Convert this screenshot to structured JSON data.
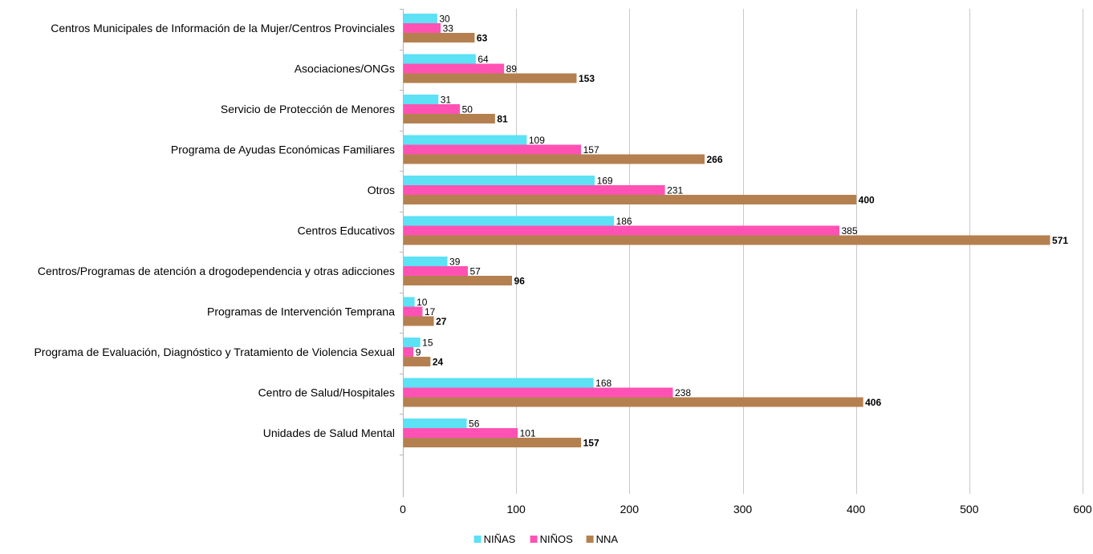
{
  "chart_data": {
    "type": "bar",
    "orientation": "horizontal",
    "categories": [
      "Centros Municipales de Información de la Mujer/Centros Provinciales",
      "Asociaciones/ONGs",
      "Servicio de Protección de Menores",
      "Programa de Ayudas Económicas Familiares",
      "Otros",
      "Centros Educativos",
      "Centros/Programas de atención a drogodependencia y otras adicciones",
      "Programas de Intervención Temprana",
      "Programa de Evaluación, Diagnóstico y Tratamiento de Violencia Sexual",
      "Centro de Salud/Hospitales",
      "Unidades de Salud Mental"
    ],
    "series": [
      {
        "name": "NIÑAS",
        "color": "#5ce1f5",
        "values": [
          30,
          64,
          31,
          109,
          169,
          186,
          39,
          10,
          15,
          168,
          56
        ]
      },
      {
        "name": "NIÑOS",
        "color": "#ff52b4",
        "values": [
          33,
          89,
          50,
          157,
          231,
          385,
          57,
          17,
          9,
          238,
          101
        ]
      },
      {
        "name": "NNA",
        "color": "#b5804f",
        "values": [
          63,
          153,
          81,
          266,
          400,
          571,
          96,
          27,
          24,
          406,
          157
        ]
      }
    ],
    "bold_series": "NNA",
    "xlim": [
      0,
      600
    ],
    "xticks": [
      0,
      100,
      200,
      300,
      400,
      500,
      600
    ],
    "grid": true,
    "legend_position": "bottom",
    "title": "",
    "xlabel": "",
    "ylabel": ""
  }
}
